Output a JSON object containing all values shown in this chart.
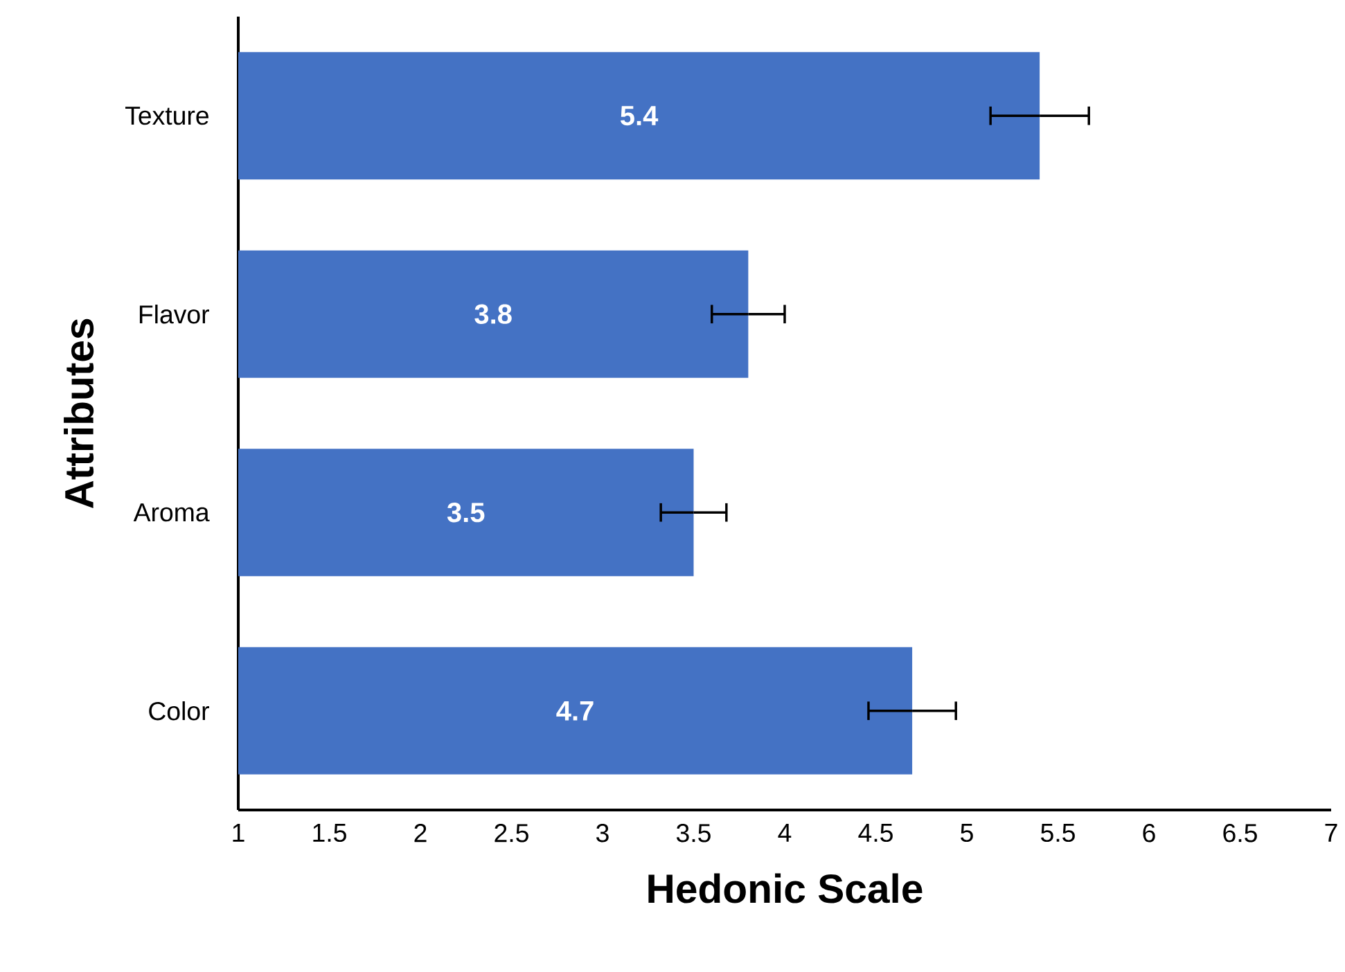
{
  "chart_data": {
    "type": "bar",
    "orientation": "horizontal",
    "xlabel": "Hedonic Scale",
    "ylabel": "Attributes",
    "categories": [
      "Texture",
      "Flavor",
      "Aroma",
      "Color"
    ],
    "values": [
      5.4,
      3.8,
      3.5,
      4.7
    ],
    "errors": [
      0.27,
      0.2,
      0.18,
      0.24
    ],
    "color": "#4472c4",
    "data_labels": true,
    "xlim": [
      1,
      7
    ],
    "xticks": [
      1,
      1.5,
      2,
      2.5,
      3,
      3.5,
      4,
      4.5,
      5,
      5.5,
      6,
      6.5,
      7
    ]
  }
}
